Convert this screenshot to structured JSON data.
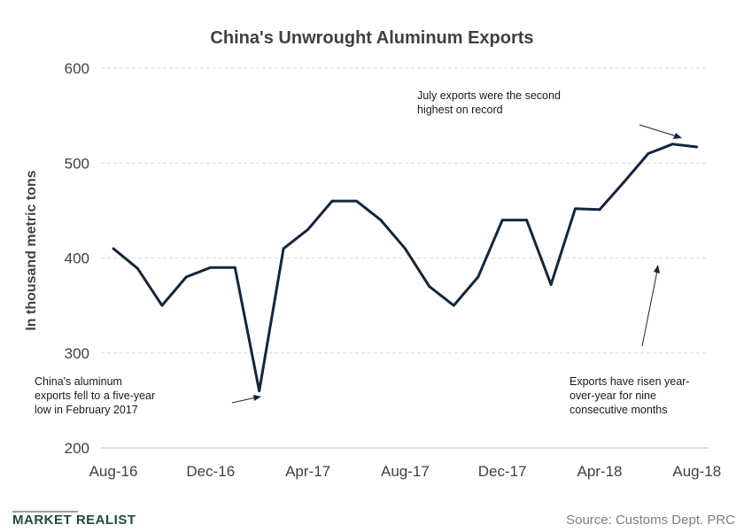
{
  "chart_data": {
    "type": "line",
    "title": "China's  Unwrought  Aluminum  Exports",
    "ylabel": "In thousand metric tons",
    "xlabel": "",
    "ylim": [
      200,
      600
    ],
    "yticks": [
      200,
      300,
      400,
      500,
      600
    ],
    "grid": true,
    "x": [
      "Aug-16",
      "Sep-16",
      "Oct-16",
      "Nov-16",
      "Dec-16",
      "Jan-17",
      "Feb-17",
      "Mar-17",
      "Apr-17",
      "May-17",
      "Jun-17",
      "Jul-17",
      "Aug-17",
      "Sep-17",
      "Oct-17",
      "Nov-17",
      "Dec-17",
      "Jan-18",
      "Feb-18",
      "Mar-18",
      "Apr-18",
      "May-18",
      "Jun-18",
      "Jul-18",
      "Aug-18"
    ],
    "xtick_labels": [
      "Aug-16",
      "Dec-16",
      "Apr-17",
      "Aug-17",
      "Dec-17",
      "Apr-18",
      "Aug-18"
    ],
    "series": [
      {
        "values": [
          410,
          389,
          350,
          380,
          390,
          390,
          260,
          410,
          430,
          460,
          460,
          440,
          410,
          370,
          350,
          380,
          440,
          440,
          372,
          452,
          451,
          480,
          510,
          520,
          517
        ]
      }
    ],
    "annotations": [
      {
        "lines": [
          "July exports were the second",
          "highest on record"
        ]
      },
      {
        "lines": [
          "China's aluminum",
          "exports fell to a five-year",
          "low in February 2017"
        ]
      },
      {
        "lines": [
          "Exports have risen year-",
          "over-year  for nine",
          "consecutive  months"
        ]
      }
    ]
  },
  "footer": {
    "brand": "MARKET REALIST",
    "source": "Source:  Customs Dept. PRC"
  },
  "colors": {
    "line": "#13263f",
    "grid": "#d9d9d9",
    "text": "#404040",
    "brand": "#1f4d3a"
  }
}
